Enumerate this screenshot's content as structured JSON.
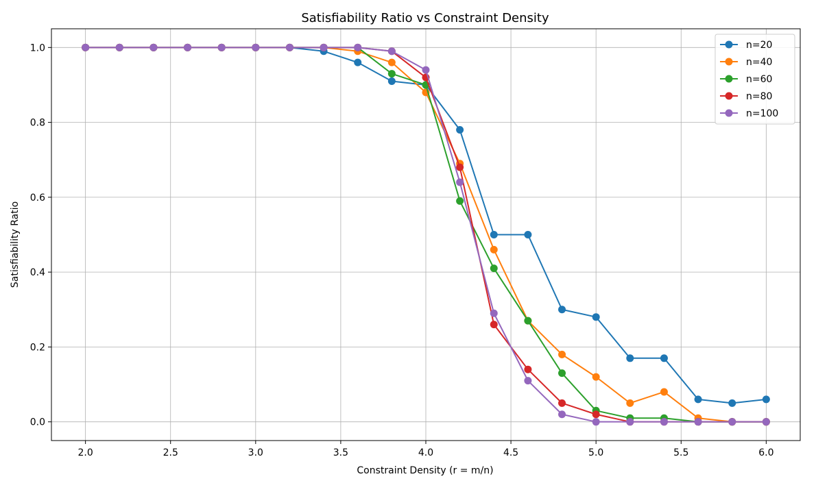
{
  "chart_data": {
    "type": "line",
    "title": "Satisfiability Ratio vs Constraint Density",
    "xlabel": "Constraint Density (r = m/n)",
    "ylabel": "Satisfiability Ratio",
    "xlim": [
      1.8,
      6.2
    ],
    "ylim": [
      -0.05,
      1.05
    ],
    "xticks": [
      "2.0",
      "2.5",
      "3.0",
      "3.5",
      "4.0",
      "4.5",
      "5.0",
      "5.5",
      "6.0"
    ],
    "yticks": [
      "0.0",
      "0.2",
      "0.4",
      "0.6",
      "0.8",
      "1.0"
    ],
    "grid": true,
    "legend_position": "top-right",
    "x": [
      2.0,
      2.2,
      2.4,
      2.6,
      2.8,
      3.0,
      3.2,
      3.4,
      3.6,
      3.8,
      4.0,
      4.2,
      4.4,
      4.6,
      4.8,
      5.0,
      5.2,
      5.4,
      5.6,
      5.8,
      6.0
    ],
    "series": [
      {
        "name": "n=20",
        "color": "#1f77b4",
        "values": [
          1.0,
          1.0,
          1.0,
          1.0,
          1.0,
          1.0,
          1.0,
          0.99,
          0.96,
          0.91,
          0.9,
          0.78,
          0.5,
          0.5,
          0.3,
          0.28,
          0.17,
          0.17,
          0.06,
          0.05,
          0.06
        ]
      },
      {
        "name": "n=40",
        "color": "#ff7f0e",
        "values": [
          1.0,
          1.0,
          1.0,
          1.0,
          1.0,
          1.0,
          1.0,
          1.0,
          0.99,
          0.96,
          0.88,
          0.69,
          0.46,
          0.27,
          0.18,
          0.12,
          0.05,
          0.08,
          0.01,
          0.0,
          0.0
        ]
      },
      {
        "name": "n=60",
        "color": "#2ca02c",
        "values": [
          1.0,
          1.0,
          1.0,
          1.0,
          1.0,
          1.0,
          1.0,
          1.0,
          1.0,
          0.93,
          0.9,
          0.59,
          0.41,
          0.27,
          0.13,
          0.03,
          0.01,
          0.01,
          0.0,
          0.0,
          0.0
        ]
      },
      {
        "name": "n=80",
        "color": "#d62728",
        "values": [
          1.0,
          1.0,
          1.0,
          1.0,
          1.0,
          1.0,
          1.0,
          1.0,
          1.0,
          0.99,
          0.92,
          0.68,
          0.26,
          0.14,
          0.05,
          0.02,
          0.0,
          0.0,
          0.0,
          0.0,
          0.0
        ]
      },
      {
        "name": "n=100",
        "color": "#9467bd",
        "values": [
          1.0,
          1.0,
          1.0,
          1.0,
          1.0,
          1.0,
          1.0,
          1.0,
          1.0,
          0.99,
          0.94,
          0.64,
          0.29,
          0.11,
          0.02,
          0.0,
          0.0,
          0.0,
          0.0,
          0.0,
          0.0
        ]
      }
    ]
  }
}
